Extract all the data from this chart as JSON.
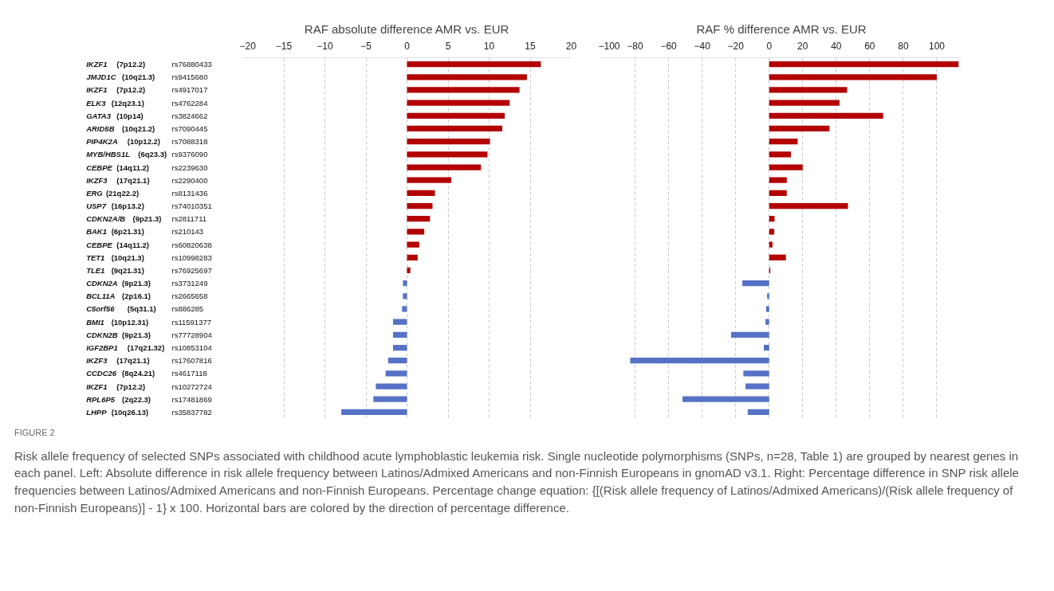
{
  "chart_data": [
    {
      "type": "bar",
      "orientation": "horizontal",
      "title": "RAF absolute difference AMR vs. EUR",
      "categories": [
        "IKZF1 (7p12.2) rs76880433",
        "JMJD1C (10q21.3) rs9415680",
        "IKZF1 (7p12.2) rs4917017",
        "ELK3 (12q23.1) rs4762284",
        "GATA3 (10p14) rs3824662",
        "ARID5B (10q21.2) rs7090445",
        "PIP4K2A (10p12.2) rs7088318",
        "MYB/HBS1L (6q23.3) rs9376090",
        "CEBPE (14q11.2) rs2239630",
        "IKZF3 (17q21.1) rs2290400",
        "ERG (21q22.2) rs8131436",
        "USP7 (16p13.2) rs74010351",
        "CDKN2A/B (9p21.3) rs2811711",
        "BAK1 (6p21.31) rs210143",
        "CEBPE (14q11.2) rs60820638",
        "TET1 (10q21.3) rs10998283",
        "TLE1 (9q21.31) rs76925697",
        "CDKN2A (9p21.3) rs3731249",
        "BCL11A (2p16.1) rs2665658",
        "C5orf56 (5q31.1) rs886285",
        "BMI1 (10p12.31) rs11591377",
        "CDKN2B (9p21.3) rs77728904",
        "IGF2BP1 (17q21.32) rs10853104",
        "IKZF3 (17q21.1) rs17607816",
        "CCDC26 (8q24.21) rs4617118",
        "IKZF1 (7p12.2) rs10272724",
        "RPL6P5 (2q22.3) rs17481869",
        "LHPP (10q26.13) rs35837782"
      ],
      "values": [
        16.3,
        14.6,
        13.7,
        12.5,
        11.9,
        11.6,
        10.1,
        9.8,
        9.0,
        5.4,
        3.4,
        3.1,
        2.8,
        2.1,
        1.5,
        1.3,
        0.4,
        -0.5,
        -0.5,
        -0.6,
        -1.7,
        -1.7,
        -1.7,
        -2.3,
        -2.6,
        -3.8,
        -4.1,
        -8.0
      ],
      "colors": [
        "#b30000",
        "#b30000",
        "#b30000",
        "#b30000",
        "#b30000",
        "#b30000",
        "#b30000",
        "#b30000",
        "#b30000",
        "#b30000",
        "#b30000",
        "#b30000",
        "#b30000",
        "#b30000",
        "#b30000",
        "#b30000",
        "#b30000",
        "#5672c6",
        "#5672c6",
        "#5672c6",
        "#5672c6",
        "#5672c6",
        "#5672c6",
        "#5672c6",
        "#5672c6",
        "#5672c6",
        "#5672c6",
        "#5672c6"
      ],
      "xlim": [
        -20,
        20
      ],
      "xticks": [
        -20,
        -15,
        -10,
        -5,
        0,
        5,
        10,
        15,
        20
      ],
      "grid": "x",
      "annotations": [
        "FIGURE 2",
        "Risk allele frequency of selected SNPs associated with childhood acute lymphoblastic leukemia risk. Single nucleotide polymorphisms (SNPs, n=28, Table 1) are grouped by nearest genes in each panel. Left: Absolute difference in risk allele frequency between Latinos/Admixed Americans and non-Finnish Europeans in gnomAD v3.1. Right: Percentage difference in SNP risk allele frequencies between Latinos/Admixed Americans and non-Finnish Europeans. Percentage change equation: {[(Risk allele frequency of Latinos/Admixed Americans)/(Risk allele frequency of non-Finnish Europeans)] - 1} x 100. Horizontal bars are colored by the direction of percentage difference."
      ]
    },
    {
      "type": "bar",
      "orientation": "horizontal",
      "title": "RAF % difference AMR vs. EUR",
      "categories": [
        null,
        null,
        null,
        null,
        null,
        null,
        null,
        null,
        null,
        null,
        null,
        null,
        null,
        null,
        null,
        null,
        null,
        null,
        null,
        null,
        null,
        null,
        null,
        null,
        null,
        null,
        null,
        null
      ],
      "values": [
        113,
        100,
        46.5,
        42,
        68,
        36,
        17,
        13,
        20,
        10.5,
        10.5,
        47,
        3.2,
        3,
        2,
        10,
        0.7,
        -16,
        -1.2,
        -1.8,
        -2.2,
        -22.7,
        -3.2,
        -82.9,
        -15.4,
        -14.1,
        -51.7,
        -12.8
      ],
      "colors": [
        "#b30000",
        "#b30000",
        "#b30000",
        "#b30000",
        "#b30000",
        "#b30000",
        "#b30000",
        "#b30000",
        "#b30000",
        "#b30000",
        "#b30000",
        "#b30000",
        "#b30000",
        "#b30000",
        "#b30000",
        "#b30000",
        "#b30000",
        "#5672c6",
        "#5672c6",
        "#5672c6",
        "#5672c6",
        "#5672c6",
        "#5672c6",
        "#5672c6",
        "#5672c6",
        "#5672c6",
        "#5672c6",
        "#5672c6"
      ],
      "xlim": [
        -100,
        115
      ],
      "xticks": [
        -100,
        -80,
        -60,
        -40,
        -20,
        0,
        20,
        40,
        60,
        80,
        100
      ],
      "grid": "x",
      "tick_labels": "x"
    }
  ]
}
